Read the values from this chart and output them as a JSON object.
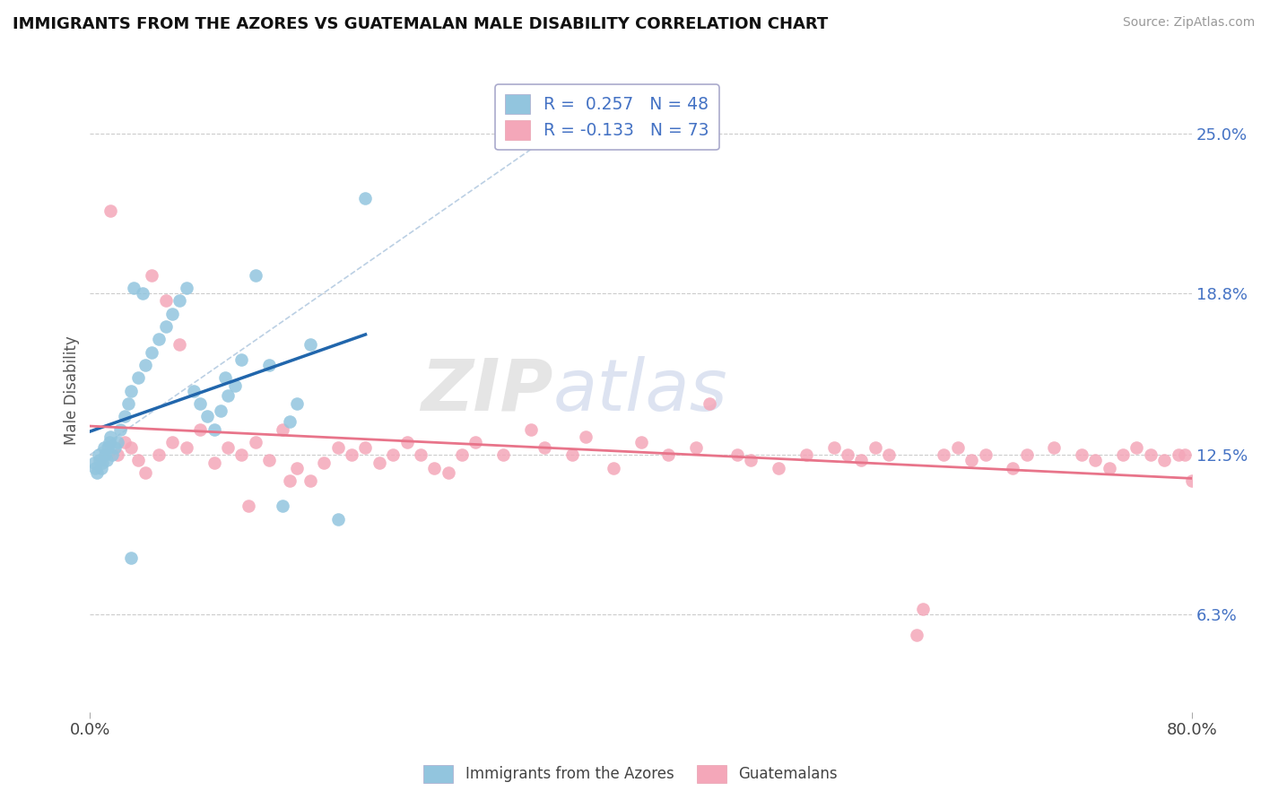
{
  "title": "IMMIGRANTS FROM THE AZORES VS GUATEMALAN MALE DISABILITY CORRELATION CHART",
  "source": "Source: ZipAtlas.com",
  "ylabel": "Male Disability",
  "right_yticks": [
    6.3,
    12.5,
    18.8,
    25.0
  ],
  "right_ytick_labels": [
    "6.3%",
    "12.5%",
    "18.8%",
    "25.0%"
  ],
  "xmin": 0.0,
  "xmax": 80.0,
  "ymin": 2.5,
  "ymax": 27.5,
  "blue_color": "#92c5de",
  "pink_color": "#f4a7b9",
  "blue_line_color": "#2166ac",
  "pink_line_color": "#e8748a",
  "blue_scatter_x": [
    0.3,
    0.4,
    0.5,
    0.6,
    0.7,
    0.8,
    0.9,
    1.0,
    1.1,
    1.2,
    1.3,
    1.4,
    1.5,
    1.6,
    1.8,
    2.0,
    2.2,
    2.5,
    2.8,
    3.0,
    3.5,
    4.0,
    4.5,
    5.0,
    5.5,
    6.0,
    6.5,
    7.0,
    7.5,
    8.0,
    8.5,
    9.0,
    9.5,
    10.0,
    10.5,
    11.0,
    12.0,
    13.0,
    14.0,
    14.5,
    15.0,
    16.0,
    18.0,
    20.0,
    3.0,
    3.2,
    3.8,
    9.8
  ],
  "blue_scatter_y": [
    12.2,
    12.0,
    11.8,
    12.5,
    12.3,
    12.0,
    12.2,
    12.8,
    12.5,
    12.3,
    12.8,
    13.0,
    13.2,
    12.5,
    12.8,
    13.0,
    13.5,
    14.0,
    14.5,
    15.0,
    15.5,
    16.0,
    16.5,
    17.0,
    17.5,
    18.0,
    18.5,
    19.0,
    15.0,
    14.5,
    14.0,
    13.5,
    14.2,
    14.8,
    15.2,
    16.2,
    19.5,
    16.0,
    10.5,
    13.8,
    14.5,
    16.8,
    10.0,
    22.5,
    8.5,
    19.0,
    18.8,
    15.5
  ],
  "pink_scatter_x": [
    1.5,
    2.0,
    2.5,
    3.0,
    3.5,
    4.0,
    5.0,
    6.0,
    7.0,
    8.0,
    9.0,
    10.0,
    11.0,
    12.0,
    13.0,
    14.0,
    15.0,
    16.0,
    17.0,
    18.0,
    19.0,
    20.0,
    21.0,
    22.0,
    23.0,
    24.0,
    25.0,
    26.0,
    27.0,
    28.0,
    30.0,
    32.0,
    33.0,
    35.0,
    36.0,
    38.0,
    40.0,
    42.0,
    44.0,
    45.0,
    47.0,
    48.0,
    50.0,
    52.0,
    54.0,
    55.0,
    56.0,
    57.0,
    58.0,
    60.0,
    62.0,
    63.0,
    64.0,
    65.0,
    67.0,
    68.0,
    70.0,
    72.0,
    73.0,
    74.0,
    75.0,
    76.0,
    77.0,
    78.0,
    79.0,
    79.5,
    80.0,
    4.5,
    5.5,
    6.5,
    11.5,
    14.5,
    60.5
  ],
  "pink_scatter_y": [
    22.0,
    12.5,
    13.0,
    12.8,
    12.3,
    11.8,
    12.5,
    13.0,
    12.8,
    13.5,
    12.2,
    12.8,
    12.5,
    13.0,
    12.3,
    13.5,
    12.0,
    11.5,
    12.2,
    12.8,
    12.5,
    12.8,
    12.2,
    12.5,
    13.0,
    12.5,
    12.0,
    11.8,
    12.5,
    13.0,
    12.5,
    13.5,
    12.8,
    12.5,
    13.2,
    12.0,
    13.0,
    12.5,
    12.8,
    14.5,
    12.5,
    12.3,
    12.0,
    12.5,
    12.8,
    12.5,
    12.3,
    12.8,
    12.5,
    5.5,
    12.5,
    12.8,
    12.3,
    12.5,
    12.0,
    12.5,
    12.8,
    12.5,
    12.3,
    12.0,
    12.5,
    12.8,
    12.5,
    12.3,
    12.5,
    12.5,
    11.5,
    19.5,
    18.5,
    16.8,
    10.5,
    11.5,
    6.5
  ]
}
